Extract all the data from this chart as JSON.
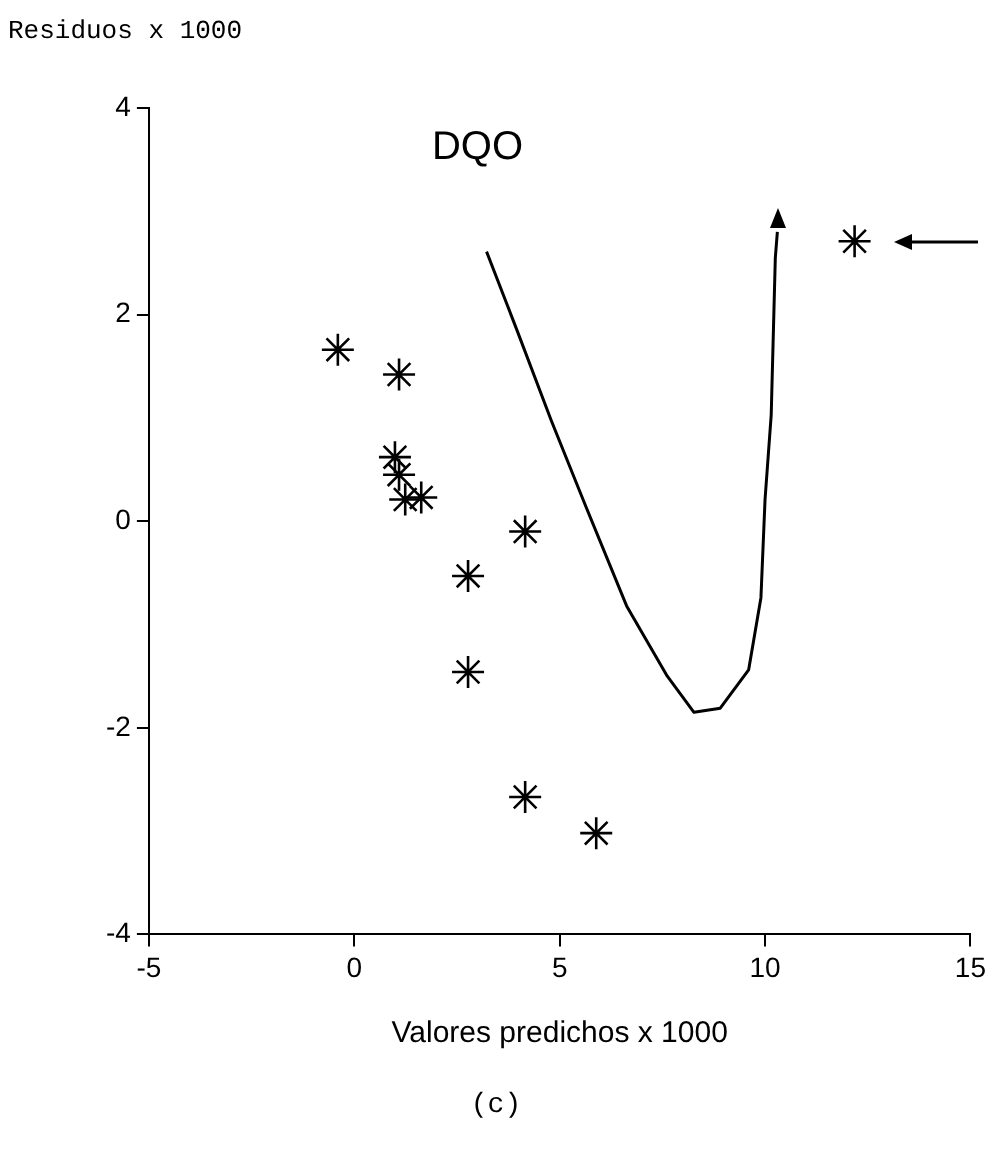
{
  "chart_data": {
    "type": "scatter",
    "title": "DQO",
    "xlabel": "Valores predichos x 1000",
    "ylabel": "Residuos x 1000",
    "annotations": [
      "(c)"
    ],
    "series": [
      {
        "type": "scatter",
        "color": "#000000",
        "x": [
          -0.4,
          1.09,
          0.99,
          1.09,
          1.24,
          1.63,
          4.16,
          2.77,
          2.77,
          4.16,
          5.89,
          12.18
        ],
        "values": [
          1.66,
          1.42,
          0.62,
          0.45,
          0.21,
          0.23,
          -0.1,
          -0.53,
          -1.46,
          -2.67,
          -3.02,
          2.71
        ]
      },
      {
        "type": "line",
        "color": "#000000",
        "marker": "none",
        "x": [
          3.22,
          3.96,
          4.8,
          5.64,
          6.63,
          7.62,
          8.27,
          8.91,
          9.6,
          9.9,
          10.0,
          10.15,
          10.25,
          10.3
        ],
        "values": [
          2.61,
          1.85,
          0.97,
          0.14,
          -0.82,
          -1.5,
          -1.85,
          -1.81,
          -1.44,
          -0.74,
          0.21,
          1.03,
          2.55,
          2.8
        ]
      }
    ],
    "marker": "cross",
    "xlim": [
      -5,
      15
    ],
    "xticks": [
      -5,
      0,
      5,
      10,
      15
    ],
    "ylim": [
      -4,
      4
    ],
    "yticks": [
      -4,
      -2,
      0,
      2,
      4
    ],
    "grid": false,
    "legend": false
  }
}
